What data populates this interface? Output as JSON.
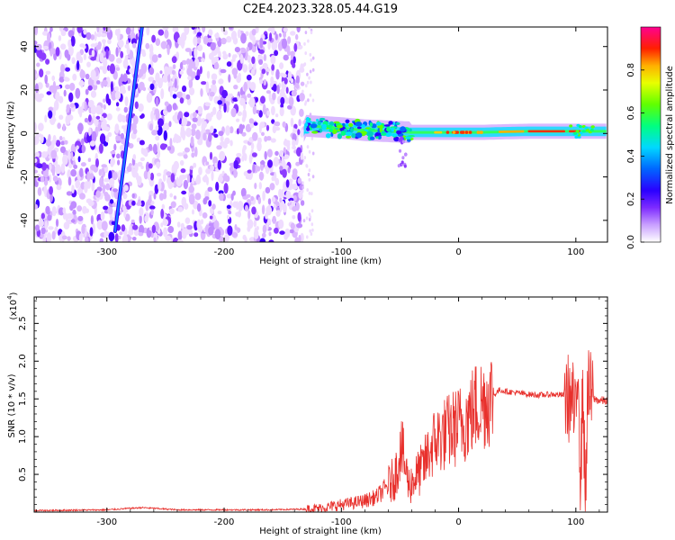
{
  "figure_title": "C2E4.2023.328.05.44.G19",
  "colors": {
    "snr_line": "#e8302c",
    "doppler_line": "#1a7bff",
    "axis": "#000000",
    "colormap": [
      "#ffffff",
      "#e6c8ff",
      "#9a3cff",
      "#3300ff",
      "#0066ff",
      "#00e0ff",
      "#00ff66",
      "#bfff00",
      "#ffd000",
      "#ff3000",
      "#ff0080"
    ]
  },
  "chart_data": [
    {
      "type": "heatmap",
      "xlabel": "Height of straight line (km)",
      "ylabel": "Frequency (Hz)",
      "xlim": [
        -362,
        127
      ],
      "ylim": [
        -50,
        49
      ],
      "xticks": [
        -300,
        -200,
        -100,
        0,
        100
      ],
      "xtick_labels": [
        "-300",
        "-200",
        "-100",
        "0",
        "100"
      ],
      "yticks": [
        -40,
        -20,
        0,
        20,
        40
      ],
      "ytick_labels": [
        "-40",
        "-20",
        "0",
        "20",
        "40"
      ],
      "noise_region_x": [
        -362,
        -133
      ],
      "signal_line": [
        {
          "x": -130,
          "f": 3.5
        },
        {
          "x": -100,
          "f": 2.5
        },
        {
          "x": -80,
          "f": 1.5
        },
        {
          "x": -60,
          "f": 1.0
        },
        {
          "x": -40,
          "f": 0.5
        },
        {
          "x": -20,
          "f": 0.5
        },
        {
          "x": 0,
          "f": 0.5
        },
        {
          "x": 20,
          "f": 0.5
        },
        {
          "x": 40,
          "f": 0.8
        },
        {
          "x": 60,
          "f": 1.0
        },
        {
          "x": 80,
          "f": 1.0
        },
        {
          "x": 100,
          "f": 1.0
        },
        {
          "x": 127,
          "f": 1.0
        }
      ],
      "doppler_streak": [
        {
          "x": -293,
          "f": -45
        },
        {
          "x": -270,
          "f": 49
        }
      ],
      "colorbar": {
        "label": "Normalized spectral amplitude",
        "range": [
          0.0,
          1.0
        ],
        "ticks": [
          0.0,
          0.2,
          0.4,
          0.6,
          0.8
        ],
        "tick_labels": [
          "0.0",
          "0.2",
          "0.4",
          "0.6",
          "0.8"
        ]
      }
    },
    {
      "type": "line",
      "xlabel": "Height of straight line (km)",
      "ylabel": "SNR (10 * v/v)",
      "multiplier_label": "(x10",
      "multiplier_exponent": "4",
      "multiplier_close": ")",
      "xlim": [
        -362,
        127
      ],
      "ylim": [
        0.0,
        2.85
      ],
      "xticks": [
        -300,
        -200,
        -100,
        0,
        100
      ],
      "xtick_labels": [
        "-300",
        "-200",
        "-100",
        "0",
        "100"
      ],
      "yticks": [
        0.5,
        1.0,
        1.5,
        2.0,
        2.5
      ],
      "ytick_labels": [
        "0.5",
        "1.0",
        "1.5",
        "2.0",
        "2.5"
      ],
      "series": [
        {
          "x": [
            -362,
            -300,
            -270,
            -240,
            -200,
            -160,
            -130,
            -120,
            -110,
            -100,
            -90,
            -80,
            -70,
            -60,
            -55,
            -52,
            -50,
            -48,
            -45,
            -42,
            -40,
            -35,
            -30,
            -25,
            -20,
            -15,
            -10,
            -5,
            0,
            5,
            10,
            15,
            20,
            25,
            30,
            35,
            40,
            50,
            60,
            70,
            80,
            90,
            95,
            98,
            100,
            102,
            104,
            106,
            108,
            110,
            115,
            120,
            127
          ],
          "y": [
            0.02,
            0.03,
            0.06,
            0.03,
            0.03,
            0.03,
            0.04,
            0.05,
            0.07,
            0.1,
            0.12,
            0.15,
            0.2,
            0.35,
            0.45,
            0.6,
            0.85,
            0.8,
            0.55,
            0.35,
            0.4,
            0.5,
            0.6,
            0.8,
            0.95,
            1.0,
            1.05,
            1.1,
            1.15,
            1.2,
            1.3,
            1.4,
            1.45,
            1.5,
            1.55,
            1.62,
            1.6,
            1.58,
            1.56,
            1.55,
            1.56,
            1.55,
            1.5,
            1.4,
            1.1,
            2.2,
            0.3,
            1.8,
            0.1,
            1.6,
            1.5,
            1.48,
            1.47
          ]
        }
      ]
    }
  ]
}
